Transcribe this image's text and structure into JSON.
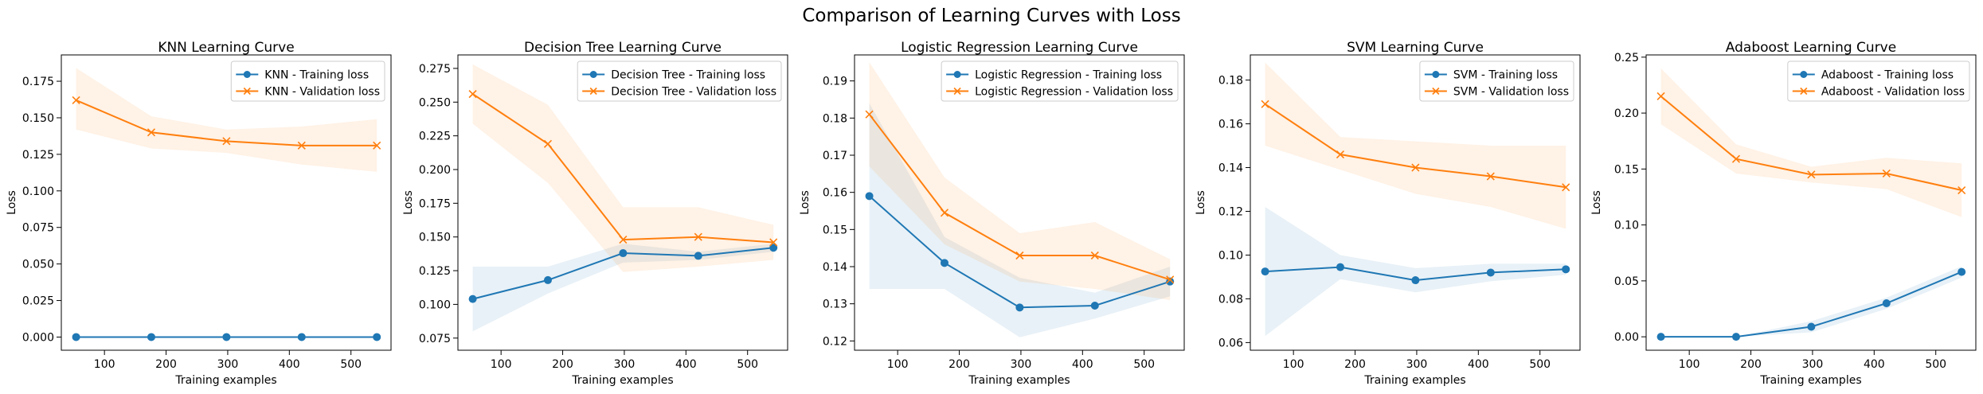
{
  "figure": {
    "suptitle": "Comparison of Learning Curves with Loss"
  },
  "colors": {
    "training": "#1f77b4",
    "validation": "#ff7f0e"
  },
  "chart_data": [
    {
      "type": "line",
      "title": "KNN Learning Curve",
      "xlabel": "Training examples",
      "ylabel": "Loss",
      "xlim": [
        30,
        565
      ],
      "ylim": [
        -0.009,
        0.193
      ],
      "xticks": [
        100,
        200,
        300,
        400,
        500
      ],
      "xtick_labels": [
        "100",
        "200",
        "300",
        "400",
        "500"
      ],
      "yticks": [
        0.0,
        0.025,
        0.05,
        0.075,
        0.1,
        0.125,
        0.15,
        0.175
      ],
      "ytick_labels": [
        "0.000",
        "0.025",
        "0.050",
        "0.075",
        "0.100",
        "0.125",
        "0.150",
        "0.175"
      ],
      "legend_position": "upper-right",
      "x": [
        54,
        176,
        298,
        420,
        542
      ],
      "series": [
        {
          "name": "KNN - Training loss",
          "marker": "circle",
          "color": "#1f77b4",
          "values": [
            0.0,
            0.0,
            0.0,
            0.0,
            0.0
          ],
          "lower": [
            0.0,
            0.0,
            0.0,
            0.0,
            0.0
          ],
          "upper": [
            0.0,
            0.0,
            0.0,
            0.0,
            0.0
          ]
        },
        {
          "name": "KNN - Validation loss",
          "marker": "x",
          "color": "#ff7f0e",
          "values": [
            0.162,
            0.14,
            0.134,
            0.131,
            0.131
          ],
          "lower": [
            0.142,
            0.129,
            0.126,
            0.118,
            0.113
          ],
          "upper": [
            0.184,
            0.151,
            0.142,
            0.144,
            0.149
          ]
        }
      ]
    },
    {
      "type": "line",
      "title": "Decision Tree Learning Curve",
      "xlabel": "Training examples",
      "ylabel": "Loss",
      "xlim": [
        30,
        565
      ],
      "ylim": [
        0.066,
        0.285
      ],
      "xticks": [
        100,
        200,
        300,
        400,
        500
      ],
      "xtick_labels": [
        "100",
        "200",
        "300",
        "400",
        "500"
      ],
      "yticks": [
        0.075,
        0.1,
        0.125,
        0.15,
        0.175,
        0.2,
        0.225,
        0.25,
        0.275
      ],
      "ytick_labels": [
        "0.075",
        "0.100",
        "0.125",
        "0.150",
        "0.175",
        "0.200",
        "0.225",
        "0.250",
        "0.275"
      ],
      "legend_position": "upper-right",
      "x": [
        54,
        176,
        298,
        420,
        542
      ],
      "series": [
        {
          "name": "Decision Tree - Training loss",
          "marker": "circle",
          "color": "#1f77b4",
          "values": [
            0.104,
            0.118,
            0.138,
            0.136,
            0.142
          ],
          "lower": [
            0.08,
            0.108,
            0.131,
            0.133,
            0.139
          ],
          "upper": [
            0.128,
            0.128,
            0.145,
            0.139,
            0.145
          ]
        },
        {
          "name": "Decision Tree - Validation loss",
          "marker": "x",
          "color": "#ff7f0e",
          "values": [
            0.256,
            0.219,
            0.148,
            0.15,
            0.146
          ],
          "lower": [
            0.234,
            0.19,
            0.124,
            0.128,
            0.133
          ],
          "upper": [
            0.278,
            0.248,
            0.172,
            0.172,
            0.159
          ]
        }
      ]
    },
    {
      "type": "line",
      "title": "Logistic Regression Learning Curve",
      "xlabel": "Training examples",
      "ylabel": "Loss",
      "xlim": [
        30,
        565
      ],
      "ylim": [
        0.1175,
        0.197
      ],
      "xticks": [
        100,
        200,
        300,
        400,
        500
      ],
      "xtick_labels": [
        "100",
        "200",
        "300",
        "400",
        "500"
      ],
      "yticks": [
        0.12,
        0.13,
        0.14,
        0.15,
        0.16,
        0.17,
        0.18,
        0.19
      ],
      "ytick_labels": [
        "0.12",
        "0.13",
        "0.14",
        "0.15",
        "0.16",
        "0.17",
        "0.18",
        "0.19"
      ],
      "legend_position": "upper-right",
      "x": [
        54,
        176,
        298,
        420,
        542
      ],
      "series": [
        {
          "name": "Logistic Regression - Training loss",
          "marker": "circle",
          "color": "#1f77b4",
          "values": [
            0.159,
            0.141,
            0.129,
            0.1295,
            0.136
          ],
          "lower": [
            0.134,
            0.134,
            0.121,
            0.126,
            0.132
          ],
          "upper": [
            0.184,
            0.148,
            0.137,
            0.133,
            0.14
          ]
        },
        {
          "name": "Logistic Regression - Validation loss",
          "marker": "x",
          "color": "#ff7f0e",
          "values": [
            0.181,
            0.1545,
            0.143,
            0.143,
            0.1365
          ],
          "lower": [
            0.167,
            0.146,
            0.136,
            0.134,
            0.131
          ],
          "upper": [
            0.195,
            0.164,
            0.149,
            0.152,
            0.142
          ]
        }
      ]
    },
    {
      "type": "line",
      "title": "SVM Learning Curve",
      "xlabel": "Training examples",
      "ylabel": "Loss",
      "xlim": [
        30,
        565
      ],
      "ylim": [
        0.0565,
        0.1915
      ],
      "xticks": [
        100,
        200,
        300,
        400,
        500
      ],
      "xtick_labels": [
        "100",
        "200",
        "300",
        "400",
        "500"
      ],
      "yticks": [
        0.06,
        0.08,
        0.1,
        0.12,
        0.14,
        0.16,
        0.18
      ],
      "ytick_labels": [
        "0.06",
        "0.08",
        "0.10",
        "0.12",
        "0.14",
        "0.16",
        "0.18"
      ],
      "legend_position": "upper-right",
      "x": [
        54,
        176,
        298,
        420,
        542
      ],
      "series": [
        {
          "name": "SVM - Training loss",
          "marker": "circle",
          "color": "#1f77b4",
          "values": [
            0.0925,
            0.0945,
            0.0885,
            0.092,
            0.0935
          ],
          "lower": [
            0.063,
            0.089,
            0.083,
            0.088,
            0.091
          ],
          "upper": [
            0.122,
            0.1,
            0.094,
            0.096,
            0.096
          ]
        },
        {
          "name": "SVM - Validation loss",
          "marker": "x",
          "color": "#ff7f0e",
          "values": [
            0.169,
            0.146,
            0.14,
            0.136,
            0.131
          ],
          "lower": [
            0.15,
            0.139,
            0.128,
            0.122,
            0.112
          ],
          "upper": [
            0.188,
            0.154,
            0.152,
            0.15,
            0.15
          ]
        }
      ]
    },
    {
      "type": "line",
      "title": "Adaboost Learning Curve",
      "xlabel": "Training examples",
      "ylabel": "Loss",
      "xlim": [
        30,
        565
      ],
      "ylim": [
        -0.012,
        0.252
      ],
      "xticks": [
        100,
        200,
        300,
        400,
        500
      ],
      "xtick_labels": [
        "100",
        "200",
        "300",
        "400",
        "500"
      ],
      "yticks": [
        0.0,
        0.05,
        0.1,
        0.15,
        0.2,
        0.25
      ],
      "ytick_labels": [
        "0.00",
        "0.05",
        "0.10",
        "0.15",
        "0.20",
        "0.25"
      ],
      "legend_position": "upper-right",
      "x": [
        54,
        176,
        298,
        420,
        542
      ],
      "series": [
        {
          "name": "Adaboost - Training loss",
          "marker": "circle",
          "color": "#1f77b4",
          "values": [
            0.0,
            0.0,
            0.009,
            0.03,
            0.058
          ],
          "lower": [
            0.0,
            0.0,
            0.004,
            0.025,
            0.053
          ],
          "upper": [
            0.0,
            0.0,
            0.014,
            0.035,
            0.063
          ]
        },
        {
          "name": "Adaboost - Validation loss",
          "marker": "x",
          "color": "#ff7f0e",
          "values": [
            0.215,
            0.159,
            0.145,
            0.146,
            0.131
          ],
          "lower": [
            0.19,
            0.146,
            0.138,
            0.132,
            0.107
          ],
          "upper": [
            0.24,
            0.172,
            0.152,
            0.16,
            0.155
          ]
        }
      ]
    }
  ]
}
